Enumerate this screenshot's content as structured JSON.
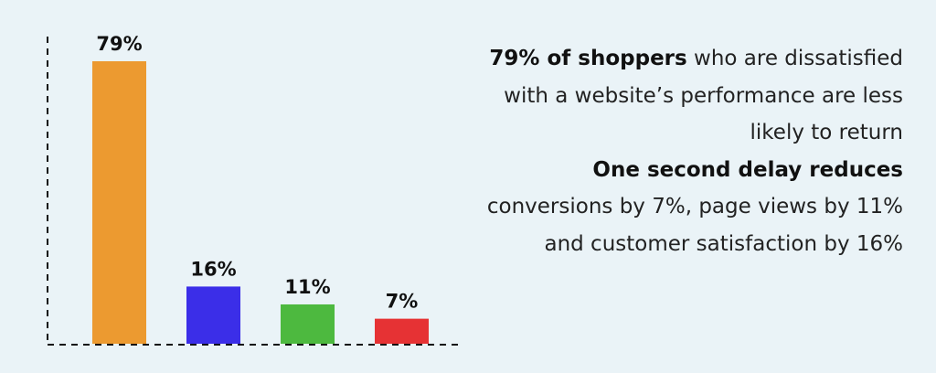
{
  "chart_data": {
    "type": "bar",
    "categories": [
      null,
      null,
      null,
      null
    ],
    "values": [
      79,
      16,
      11,
      7
    ],
    "value_labels": [
      "79%",
      "16%",
      "11%",
      "7%"
    ],
    "colors": [
      "#ec9a30",
      "#3b2ee8",
      "#4db93f",
      "#e63234"
    ],
    "annotations": [
      {
        "bold": "79% of shoppers",
        "text": "who are dissatisfied with a website’s performance are less likely to return"
      },
      {
        "bold": "One second delay reduces",
        "text": "conversions by 7%, page views by 11% and customer satisfaction by 16%"
      }
    ]
  }
}
